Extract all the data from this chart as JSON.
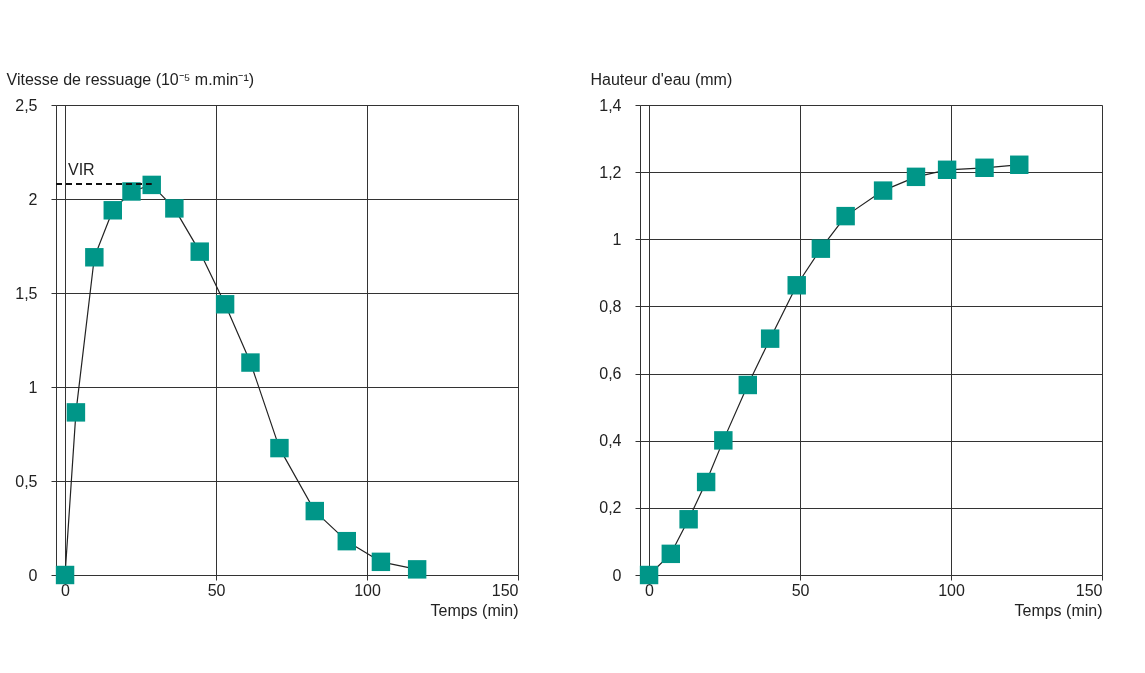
{
  "chart_data": [
    {
      "type": "line",
      "ylabel": "Vitesse de ressuage (10⁻⁵ m.min⁻¹)",
      "xlabel": "Temps (min)",
      "x": [
        0,
        3.6,
        9.7,
        15.8,
        22.0,
        28.7,
        36.2,
        44.6,
        53.0,
        61.4,
        71.0,
        82.7,
        93.3,
        104.6,
        116.6
      ],
      "series": [
        {
          "color": "#009688",
          "values": [
            0,
            0.865,
            1.69,
            1.94,
            2.04,
            2.075,
            1.95,
            1.72,
            1.44,
            1.13,
            0.675,
            0.34,
            0.18,
            0.07,
            0.03
          ]
        }
      ],
      "xlim": [
        -3,
        150
      ],
      "xticks": [
        0,
        50,
        100,
        150
      ],
      "ylim": [
        0,
        2.5
      ],
      "yticks": [
        0,
        {
          "value": 0.5,
          "label": "0,5"
        },
        1,
        {
          "value": 1.5,
          "label": "1,5"
        },
        2,
        {
          "value": 2.5,
          "label": "2,5"
        }
      ],
      "ref_lines": [
        {
          "axis": "y",
          "value": 2.08,
          "label": "VIR",
          "line_style": "dashed"
        }
      ],
      "grid": true,
      "marker": "square",
      "line_style": "solid"
    },
    {
      "type": "line",
      "ylabel": "Hauteur d'eau (mm)",
      "xlabel": "Temps (min)",
      "x": [
        0,
        7.2,
        13.1,
        18.9,
        24.6,
        32.7,
        40.1,
        48.9,
        56.9,
        65.1,
        77.5,
        88.4,
        98.7,
        111.1,
        122.6
      ],
      "series": [
        {
          "color": "#009688",
          "values": [
            0,
            0.063,
            0.166,
            0.277,
            0.401,
            0.566,
            0.704,
            0.863,
            0.972,
            1.069,
            1.145,
            1.186,
            1.207,
            1.213,
            1.222
          ]
        }
      ],
      "xlim": [
        -3,
        150
      ],
      "xticks": [
        0,
        50,
        100,
        150
      ],
      "ylim": [
        0,
        1.4
      ],
      "yticks": [
        0,
        {
          "value": 0.2,
          "label": "0,2"
        },
        {
          "value": 0.4,
          "label": "0,4"
        },
        {
          "value": 0.6,
          "label": "0,6"
        },
        {
          "value": 0.8,
          "label": "0,8"
        },
        1,
        {
          "value": 1.2,
          "label": "1,2"
        },
        {
          "value": 1.4,
          "label": "1,4"
        }
      ],
      "grid": true,
      "marker": "square",
      "line_style": "solid"
    }
  ]
}
